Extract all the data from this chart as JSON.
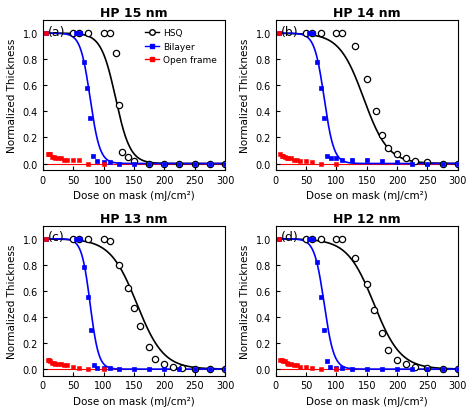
{
  "panels": [
    {
      "label": "(a)",
      "title": "HP 15 nm",
      "hsq_inflection": 120,
      "hsq_slope": -12,
      "bilayer_inflection": 78,
      "bilayer_slope": -8,
      "hsq_data_x": [
        50,
        60,
        75,
        100,
        110,
        120,
        125,
        130,
        140,
        150,
        175,
        200,
        225,
        250,
        275,
        300
      ],
      "hsq_data_y": [
        1.0,
        1.0,
        1.0,
        1.0,
        1.0,
        0.85,
        0.45,
        0.09,
        0.05,
        0.02,
        0.0,
        0.0,
        0.0,
        0.0,
        0.0,
        0.0
      ],
      "bilayer_data_x": [
        5,
        55,
        62,
        68,
        73,
        78,
        83,
        90,
        100,
        110,
        125,
        150,
        175,
        200,
        225,
        250,
        275,
        300
      ],
      "bilayer_data_y": [
        1.0,
        1.0,
        1.0,
        0.78,
        0.58,
        0.35,
        0.06,
        0.02,
        0.01,
        0.01,
        0.0,
        0.0,
        0.0,
        0.0,
        0.0,
        0.0,
        0.0,
        0.0
      ],
      "open_frame_x": [
        5,
        8,
        10,
        12,
        15,
        18,
        20,
        25,
        30,
        35,
        40,
        50,
        60,
        75,
        100
      ],
      "open_frame_y": [
        1.0,
        0.07,
        0.07,
        0.07,
        0.05,
        0.05,
        0.04,
        0.04,
        0.04,
        0.03,
        0.03,
        0.03,
        0.03,
        0.0,
        0.0
      ],
      "show_legend": true
    },
    {
      "label": "(b)",
      "title": "HP 14 nm",
      "hsq_inflection": 145,
      "hsq_slope": -20,
      "bilayer_inflection": 80,
      "bilayer_slope": -8,
      "hsq_data_x": [
        50,
        60,
        75,
        100,
        110,
        130,
        150,
        165,
        175,
        185,
        200,
        215,
        230,
        250,
        275,
        300
      ],
      "hsq_data_y": [
        1.0,
        1.0,
        1.0,
        1.0,
        1.0,
        0.9,
        0.65,
        0.4,
        0.22,
        0.12,
        0.07,
        0.04,
        0.02,
        0.01,
        0.0,
        0.0
      ],
      "bilayer_data_x": [
        5,
        55,
        62,
        68,
        75,
        80,
        85,
        92,
        100,
        110,
        125,
        150,
        175,
        200,
        225,
        250,
        275,
        300
      ],
      "bilayer_data_y": [
        1.0,
        1.0,
        1.0,
        0.78,
        0.58,
        0.35,
        0.06,
        0.04,
        0.04,
        0.03,
        0.03,
        0.03,
        0.02,
        0.01,
        0.0,
        0.0,
        0.0,
        0.0
      ],
      "open_frame_x": [
        5,
        8,
        10,
        12,
        15,
        18,
        20,
        25,
        30,
        35,
        40,
        50,
        60,
        75,
        100
      ],
      "open_frame_y": [
        1.0,
        0.07,
        0.06,
        0.06,
        0.05,
        0.04,
        0.04,
        0.04,
        0.03,
        0.03,
        0.02,
        0.02,
        0.01,
        0.0,
        0.0
      ],
      "show_legend": false
    },
    {
      "label": "(c)",
      "title": "HP 13 nm",
      "hsq_inflection": 155,
      "hsq_slope": -22,
      "bilayer_inflection": 78,
      "bilayer_slope": -7,
      "hsq_data_x": [
        50,
        60,
        75,
        100,
        110,
        125,
        140,
        150,
        160,
        175,
        185,
        200,
        215,
        230,
        250,
        275,
        300
      ],
      "hsq_data_y": [
        1.0,
        1.0,
        1.0,
        1.0,
        0.98,
        0.8,
        0.62,
        0.47,
        0.33,
        0.17,
        0.08,
        0.04,
        0.02,
        0.01,
        0.0,
        0.0,
        0.0
      ],
      "bilayer_data_x": [
        5,
        55,
        62,
        68,
        75,
        80,
        85,
        90,
        100,
        110,
        125,
        150,
        175,
        200,
        225,
        250,
        275,
        300
      ],
      "bilayer_data_y": [
        1.0,
        1.0,
        1.0,
        0.78,
        0.55,
        0.3,
        0.03,
        0.01,
        0.01,
        0.01,
        0.0,
        0.0,
        0.0,
        0.0,
        0.0,
        0.0,
        0.0,
        0.0
      ],
      "open_frame_x": [
        5,
        8,
        10,
        12,
        15,
        18,
        20,
        25,
        30,
        35,
        40,
        50,
        60,
        75,
        100
      ],
      "open_frame_y": [
        1.0,
        0.07,
        0.07,
        0.06,
        0.05,
        0.05,
        0.04,
        0.04,
        0.04,
        0.03,
        0.03,
        0.02,
        0.01,
        0.0,
        0.0
      ],
      "show_legend": false
    },
    {
      "label": "(d)",
      "title": "HP 12 nm",
      "hsq_inflection": 162,
      "hsq_slope": -22,
      "bilayer_inflection": 80,
      "bilayer_slope": -8,
      "hsq_data_x": [
        50,
        60,
        75,
        100,
        110,
        130,
        150,
        162,
        175,
        185,
        200,
        215,
        230,
        250,
        275,
        300
      ],
      "hsq_data_y": [
        1.0,
        1.0,
        1.0,
        1.0,
        1.0,
        0.85,
        0.65,
        0.45,
        0.28,
        0.15,
        0.07,
        0.04,
        0.02,
        0.01,
        0.0,
        0.0
      ],
      "bilayer_data_x": [
        5,
        55,
        62,
        68,
        75,
        80,
        85,
        90,
        100,
        110,
        125,
        150,
        175,
        200,
        225,
        250,
        275,
        300
      ],
      "bilayer_data_y": [
        1.0,
        1.0,
        1.0,
        0.82,
        0.55,
        0.3,
        0.06,
        0.02,
        0.01,
        0.01,
        0.0,
        0.0,
        0.0,
        0.0,
        0.0,
        0.0,
        0.0,
        0.0
      ],
      "open_frame_x": [
        5,
        8,
        10,
        12,
        15,
        18,
        20,
        25,
        30,
        35,
        40,
        50,
        60,
        75,
        100
      ],
      "open_frame_y": [
        1.0,
        0.07,
        0.07,
        0.06,
        0.06,
        0.05,
        0.04,
        0.04,
        0.03,
        0.03,
        0.02,
        0.02,
        0.01,
        0.0,
        0.0
      ],
      "show_legend": false
    }
  ],
  "xlabel": "Dose on mask (mJ/cm²)",
  "ylabel": "Normalized Thickness",
  "xlim": [
    0,
    300
  ],
  "ylim": [
    -0.05,
    1.1
  ],
  "xticks": [
    0,
    50,
    100,
    150,
    200,
    250,
    300
  ],
  "yticks": [
    0.0,
    0.2,
    0.4,
    0.6,
    0.8,
    1.0
  ],
  "hsq_color": "black",
  "bilayer_color": "blue",
  "open_frame_color": "red",
  "legend_labels": [
    "HSQ",
    "Bilayer",
    "Open frame"
  ],
  "figure_bg": "white"
}
